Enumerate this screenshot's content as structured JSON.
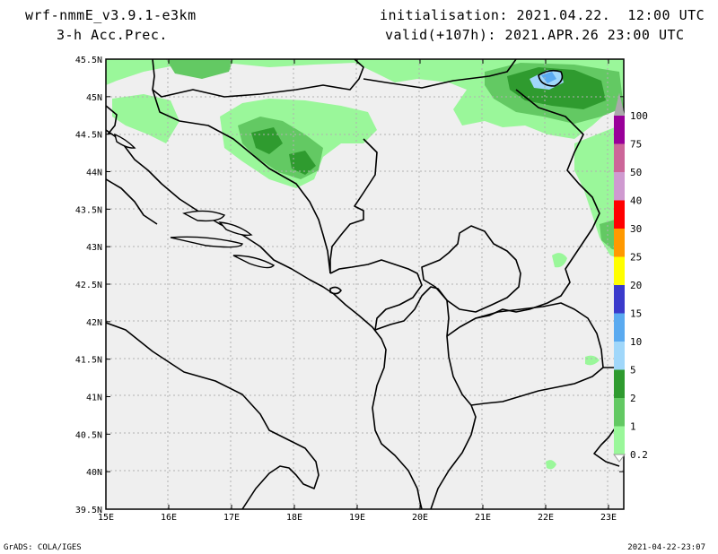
{
  "header": {
    "model": "wrf-nmmE_v3.9.1-e3km",
    "field": "3-h Acc.Prec.",
    "init_label": "initialisation:",
    "init_value": "2021.04.22.  12:00 UTC",
    "valid_label": "valid(+107h):",
    "valid_value": "2021.APR.26 23:00 UTC"
  },
  "footer": {
    "left": "GrADS: COLA/IGES",
    "right": "2021-04-22-23:07"
  },
  "axes": {
    "lon_ticks": [
      "15E",
      "16E",
      "17E",
      "18E",
      "19E",
      "20E",
      "21E",
      "22E",
      "23E"
    ],
    "lat_ticks": [
      "45.5N",
      "45N",
      "44.5N",
      "44N",
      "43.5N",
      "43N",
      "42.5N",
      "42N",
      "41.5N",
      "41N",
      "40.5N",
      "40N",
      "39.5N"
    ]
  },
  "colors": {
    "ocean": "#efefef",
    "coast": "#000000",
    "grid": "#b0b0b0"
  },
  "legend": {
    "levels": [
      {
        "label": "0.2",
        "color": "#9af79a"
      },
      {
        "label": "1",
        "color": "#63c963"
      },
      {
        "label": "2",
        "color": "#2f9b2f"
      },
      {
        "label": "5",
        "color": "#a0d7fa"
      },
      {
        "label": "10",
        "color": "#5aaaf0"
      },
      {
        "label": "15",
        "color": "#3a3acb"
      },
      {
        "label": "20",
        "color": "#ffff00"
      },
      {
        "label": "25",
        "color": "#ff9900"
      },
      {
        "label": "30",
        "color": "#ff0000"
      },
      {
        "label": "40",
        "color": "#cf9ad0"
      },
      {
        "label": "50",
        "color": "#cc6699"
      },
      {
        "label": "75",
        "color": "#990099"
      },
      {
        "label": "100",
        "color": "#aaaaaa"
      }
    ]
  }
}
